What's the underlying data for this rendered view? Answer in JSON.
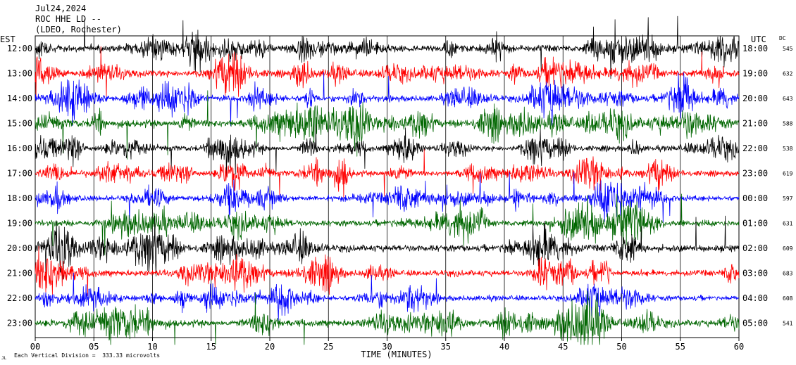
{
  "header": {
    "line1": "Jul24,2024",
    "line2": "ROC HHE LD --",
    "line3": "(LDEO, Rochester)"
  },
  "labels": {
    "left_zone": "EST",
    "right_zone": "UTC",
    "dc": "DC"
  },
  "footer": {
    "note": "Each Vertical Division =  333.33 microvolts",
    "corner_mark": "JL"
  },
  "colors": {
    "black": "#000000",
    "red": "#ff0000",
    "blue": "#0000ff",
    "green": "#006600"
  },
  "chart_data": {
    "type": "line",
    "title": "Jul24,2024",
    "xlabel": "TIME (MINUTES)",
    "ylabel": "",
    "xlim": [
      0,
      60
    ],
    "x_ticks": [
      "00",
      "05",
      "10",
      "15",
      "20",
      "25",
      "30",
      "35",
      "40",
      "45",
      "50",
      "55",
      "60"
    ],
    "grid": true,
    "rows": [
      {
        "est": "12:00",
        "utc": "18:00",
        "dc": "545",
        "color": "black",
        "amplitude": 1.0
      },
      {
        "est": "13:00",
        "utc": "19:00",
        "dc": "632",
        "color": "red",
        "amplitude": 1.0
      },
      {
        "est": "14:00",
        "utc": "20:00",
        "dc": "643",
        "color": "blue",
        "amplitude": 0.9
      },
      {
        "est": "15:00",
        "utc": "21:00",
        "dc": "588",
        "color": "green",
        "amplitude": 1.1
      },
      {
        "est": "16:00",
        "utc": "22:00",
        "dc": "538",
        "color": "black",
        "amplitude": 0.8
      },
      {
        "est": "17:00",
        "utc": "23:00",
        "dc": "619",
        "color": "red",
        "amplitude": 0.8
      },
      {
        "est": "18:00",
        "utc": "00:00",
        "dc": "597",
        "color": "blue",
        "amplitude": 0.8
      },
      {
        "est": "19:00",
        "utc": "01:00",
        "dc": "631",
        "color": "green",
        "amplitude": 0.9
      },
      {
        "est": "20:00",
        "utc": "02:00",
        "dc": "609",
        "color": "black",
        "amplitude": 1.0
      },
      {
        "est": "21:00",
        "utc": "03:00",
        "dc": "683",
        "color": "red",
        "amplitude": 0.9
      },
      {
        "est": "22:00",
        "utc": "04:00",
        "dc": "608",
        "color": "blue",
        "amplitude": 0.8
      },
      {
        "est": "23:00",
        "utc": "05:00",
        "dc": "541",
        "color": "green",
        "amplitude": 1.0
      }
    ]
  }
}
